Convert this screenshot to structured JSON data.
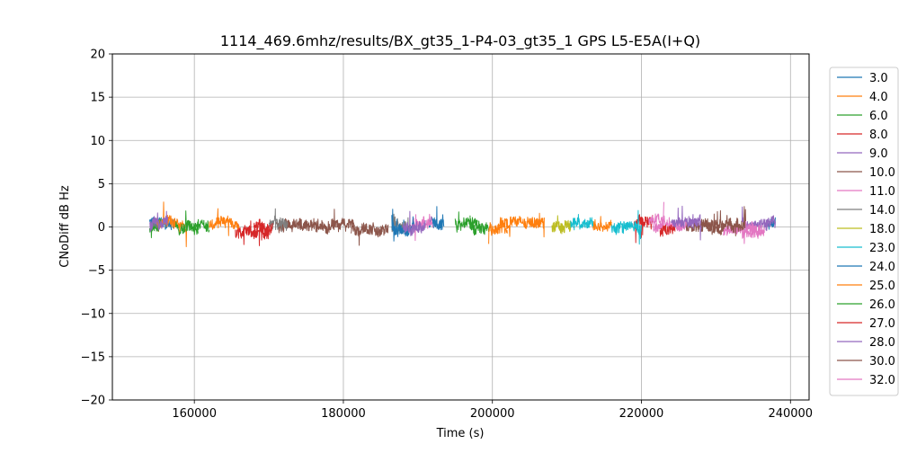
{
  "chart_data": {
    "type": "line",
    "title": "1114_469.6mhz/results/BX_gt35_1-P4-03_gt35_1 GPS L5-E5A(I+Q)",
    "xlabel": "Time (s)",
    "ylabel": "CNoDiff dB Hz",
    "xlim": [
      149000,
      242500
    ],
    "ylim": [
      -20,
      20
    ],
    "xticks": [
      160000,
      180000,
      200000,
      220000,
      240000
    ],
    "yticks": [
      -20,
      -15,
      -10,
      -5,
      0,
      5,
      10,
      15,
      20
    ],
    "grid": true,
    "legend_position": "right, outside plot",
    "series": [
      {
        "name": "3.0",
        "color": "#1f77b4",
        "segments": [
          [
            154000,
            157500,
            0.4
          ],
          [
            191500,
            193300,
            0.5
          ],
          [
            237000,
            238000,
            0.4
          ]
        ]
      },
      {
        "name": "4.0",
        "color": "#ff7f0e",
        "segments": [
          [
            155000,
            159000,
            0.5
          ],
          [
            201000,
            207000,
            0.6
          ]
        ]
      },
      {
        "name": "6.0",
        "color": "#2ca02c",
        "segments": [
          [
            154000,
            155500,
            0.0
          ],
          [
            160000,
            162000,
            0.0
          ],
          [
            197000,
            199500,
            0.0
          ]
        ]
      },
      {
        "name": "8.0",
        "color": "#d62728",
        "segments": [
          [
            165500,
            170000,
            -0.5
          ],
          [
            219000,
            221500,
            0.5
          ]
        ]
      },
      {
        "name": "9.0",
        "color": "#9467bd",
        "segments": [
          [
            154000,
            156500,
            0.3
          ],
          [
            233500,
            238000,
            0.3
          ]
        ]
      },
      {
        "name": "10.0",
        "color": "#8c564b",
        "segments": [
          [
            171000,
            175000,
            0.2
          ],
          [
            181000,
            186000,
            -0.3
          ],
          [
            226000,
            231000,
            0.0
          ]
        ]
      },
      {
        "name": "11.0",
        "color": "#e377c2",
        "segments": [
          [
            189000,
            192000,
            0.4
          ],
          [
            221500,
            226000,
            0.2
          ],
          [
            231000,
            236000,
            -0.3
          ]
        ]
      },
      {
        "name": "14.0",
        "color": "#7f7f7f",
        "segments": [
          [
            170000,
            172500,
            0.3
          ],
          [
            186500,
            189000,
            0.0
          ]
        ]
      },
      {
        "name": "18.0",
        "color": "#bcbd22",
        "segments": [
          [
            208000,
            210500,
            0.0
          ]
        ]
      },
      {
        "name": "23.0",
        "color": "#17becf",
        "segments": [
          [
            210500,
            213500,
            0.5
          ],
          [
            216000,
            220000,
            0.0
          ]
        ]
      },
      {
        "name": "24.0",
        "color": "#1f77b4",
        "segments": [
          [
            186500,
            189500,
            0.0
          ],
          [
            192500,
            193500,
            0.2
          ]
        ]
      },
      {
        "name": "25.0",
        "color": "#ff7f0e",
        "segments": [
          [
            162000,
            166000,
            0.4
          ],
          [
            199500,
            202000,
            0.0
          ],
          [
            213500,
            216000,
            0.3
          ]
        ]
      },
      {
        "name": "26.0",
        "color": "#2ca02c",
        "segments": [
          [
            157500,
            160500,
            0.0
          ],
          [
            195000,
            198000,
            0.3
          ]
        ]
      },
      {
        "name": "27.0",
        "color": "#d62728",
        "segments": [
          [
            168000,
            170500,
            -0.2
          ],
          [
            222500,
            224500,
            -0.5
          ]
        ]
      },
      {
        "name": "28.0",
        "color": "#9467bd",
        "segments": [
          [
            188000,
            191000,
            0.1
          ],
          [
            224000,
            228000,
            0.4
          ]
        ]
      },
      {
        "name": "30.0",
        "color": "#8c564b",
        "segments": [
          [
            175000,
            181500,
            0.3
          ],
          [
            228000,
            234000,
            0.3
          ]
        ]
      },
      {
        "name": "32.0",
        "color": "#e377c2",
        "segments": [
          [
            221000,
            223000,
            0.8
          ],
          [
            234000,
            236500,
            -0.5
          ]
        ]
      }
    ]
  }
}
